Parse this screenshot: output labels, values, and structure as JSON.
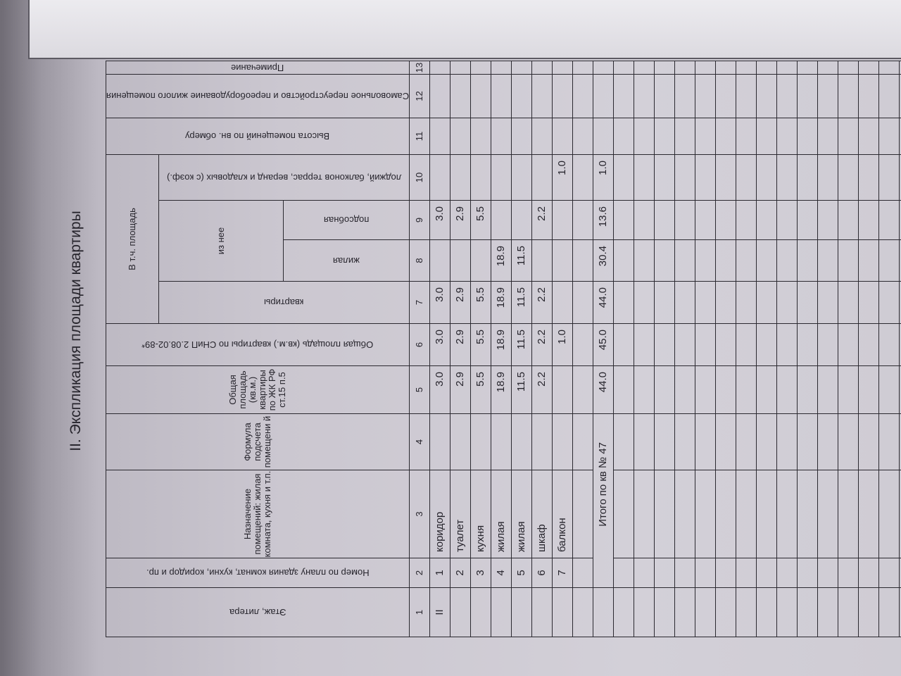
{
  "title": "II. Экспликация площади квартиры",
  "header": {
    "col1": "Этаж, литера",
    "col2": "Номер по плану здания комнат, кухни, коридор и пр.",
    "col3": "Назначение помещений: жилая комната, кухня и т.п.",
    "col4": "Формула подсчета помещени й",
    "col5": "Общая площадь (кв.м.) квартиры по ЖК РФ ст.15 п.5",
    "col6": "Общая площадь (кв.м.) квартиры по СНиП 2.08.02-89*",
    "group": "В т.ч. площадь",
    "col7": "квартиры",
    "subgroup": "из нее",
    "col8": "жилая",
    "col9": "подсобная",
    "col10": "лоджий, балконов террас, веранд и кладовых (с коэф.)",
    "col11": "Высота помещений по вн. обмеру",
    "col12": "Самовольное переустройство и переоборудование жилого помещения",
    "col13": "Примечание"
  },
  "column_numbers": [
    "1",
    "2",
    "3",
    "4",
    "5",
    "6",
    "7",
    "8",
    "9",
    "10",
    "11",
    "12",
    "13"
  ],
  "rows": [
    [
      "II",
      "1",
      "коридор",
      "",
      "3.0",
      "3.0",
      "3.0",
      "",
      "3.0",
      "",
      "",
      "",
      ""
    ],
    [
      "",
      "2",
      "туалет",
      "",
      "2.9",
      "2.9",
      "2.9",
      "",
      "2.9",
      "",
      "",
      "",
      ""
    ],
    [
      "",
      "3",
      "кухня",
      "",
      "5.5",
      "5.5",
      "5.5",
      "",
      "5.5",
      "",
      "",
      "",
      ""
    ],
    [
      "",
      "4",
      "жилая",
      "",
      "18.9",
      "18.9",
      "18.9",
      "18.9",
      "",
      "",
      "",
      "",
      ""
    ],
    [
      "",
      "5",
      "жилая",
      "",
      "11.5",
      "11.5",
      "11.5",
      "11.5",
      "",
      "",
      "",
      "",
      ""
    ],
    [
      "",
      "6",
      "шкаф",
      "",
      "2.2",
      "2.2",
      "2.2",
      "",
      "2.2",
      "",
      "",
      "",
      ""
    ],
    [
      "",
      "7",
      "балкон",
      "",
      "",
      "1.0",
      "",
      "",
      "",
      "1.0",
      "",
      "",
      ""
    ]
  ],
  "total": {
    "label": "Итого по кв № 47",
    "values": [
      "44.0",
      "45.0",
      "44.0",
      "30.4",
      "13.6",
      "1.0",
      "",
      "",
      ""
    ]
  },
  "empty_rows_after_total": 20,
  "empty_rows_before_total": 1
}
